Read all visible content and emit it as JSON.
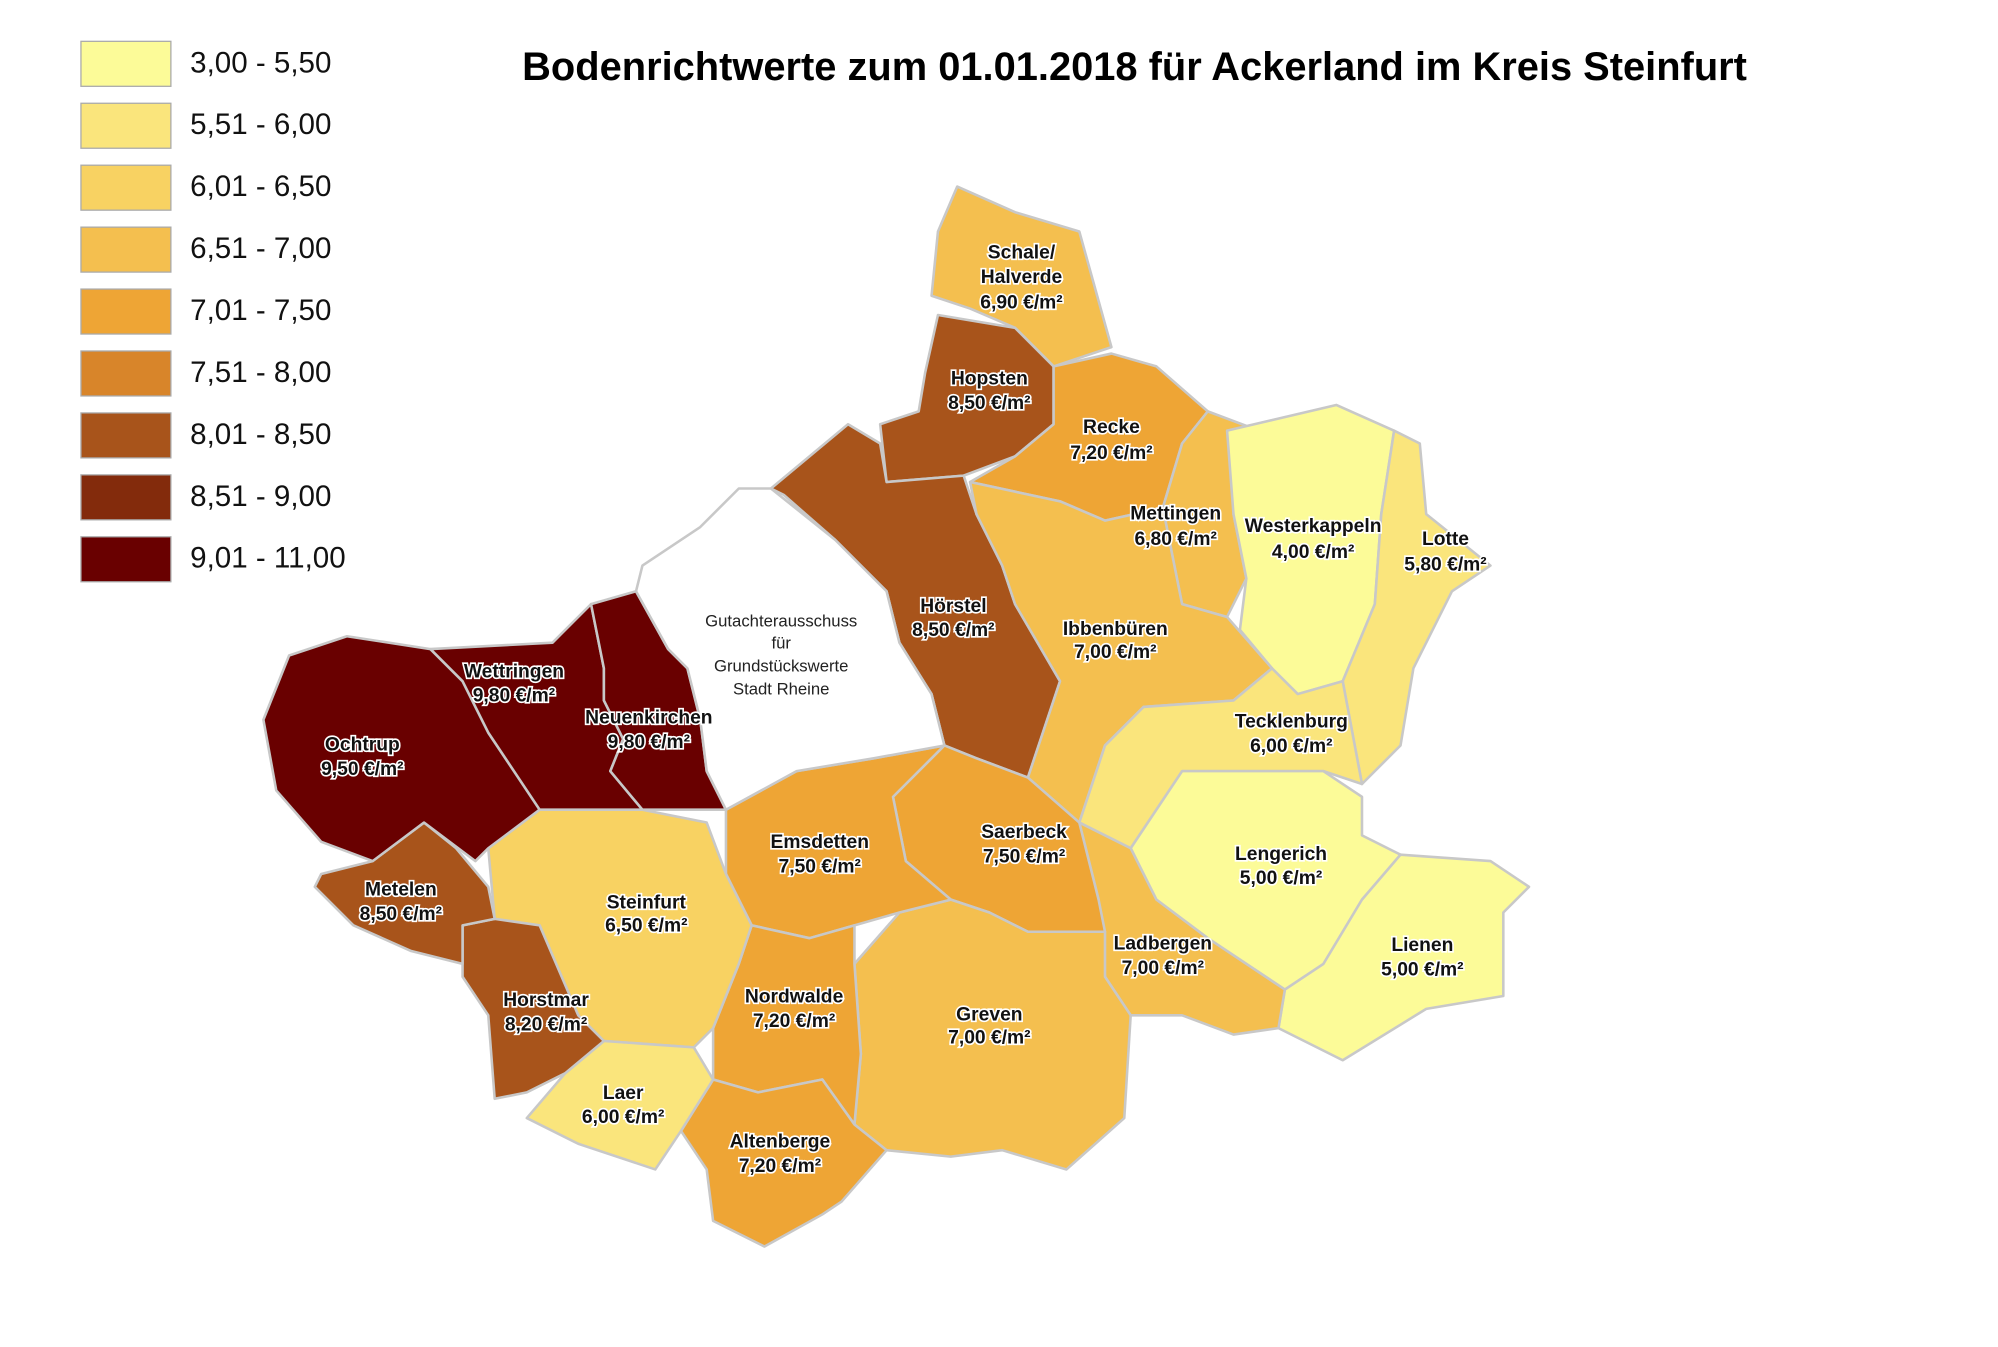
{
  "title": "Bodenrichtwerte zum 01.01.2018 für Ackerland im Kreis Steinfurt",
  "legend": [
    {
      "label": "3,00 - 5,50",
      "color": "#fcfb98"
    },
    {
      "label": "5,51 - 6,00",
      "color": "#fae57c"
    },
    {
      "label": "6,01 - 6,50",
      "color": "#f8d262"
    },
    {
      "label": "6,51 - 7,00",
      "color": "#f4bf4f"
    },
    {
      "label": "7,01 - 7,50",
      "color": "#eea535"
    },
    {
      "label": "7,51 - 8,00",
      "color": "#d8852a"
    },
    {
      "label": "8,01 - 8,50",
      "color": "#a8541b"
    },
    {
      "label": "8,51 - 9,00",
      "color": "#832b0c"
    },
    {
      "label": "9,01 - 11,00",
      "color": "#690000"
    }
  ],
  "regions": [
    {
      "name": [
        "Schale/",
        "Halverde"
      ],
      "value": "6,90 €/m²",
      "color": "#f4bf4f"
    },
    {
      "name": "Hopsten",
      "value": "8,50 €/m²",
      "color": "#a8541b"
    },
    {
      "name": "Recke",
      "value": "7,20 €/m²",
      "color": "#eea535"
    },
    {
      "name": "Mettingen",
      "value": "6,80 €/m²",
      "color": "#f4bf4f"
    },
    {
      "name": "Westerkappeln",
      "value": "4,00 €/m²",
      "color": "#fcfb98"
    },
    {
      "name": "Lotte",
      "value": "5,80 €/m²",
      "color": "#fae57c"
    },
    {
      "name": "Hörstel",
      "value": "8,50 €/m²",
      "color": "#a8541b"
    },
    {
      "name": "Ibbenbüren",
      "value": "7,00 €/m²",
      "color": "#f4bf4f"
    },
    {
      "name": "Tecklenburg",
      "value": "6,00 €/m²",
      "color": "#fae57c"
    },
    {
      "name": "Lengerich",
      "value": "5,00 €/m²",
      "color": "#fcfb98"
    },
    {
      "name": "Lienen",
      "value": "5,00 €/m²",
      "color": "#fcfb98"
    },
    {
      "name": "Ladbergen",
      "value": "7,00 €/m²",
      "color": "#f4bf4f"
    },
    {
      "name": "Saerbeck",
      "value": "7,50 €/m²",
      "color": "#eea535"
    },
    {
      "name": "Greven",
      "value": "7,00 €/m²",
      "color": "#f4bf4f"
    },
    {
      "name": "Emsdetten",
      "value": "7,50 €/m²",
      "color": "#eea535"
    },
    {
      "name": "Nordwalde",
      "value": "7,20 €/m²",
      "color": "#eea535"
    },
    {
      "name": "Altenberge",
      "value": "7,20 €/m²",
      "color": "#eea535"
    },
    {
      "name": "Steinfurt",
      "value": "6,50 €/m²",
      "color": "#f8d262"
    },
    {
      "name": "Laer",
      "value": "6,00 €/m²",
      "color": "#fae57c"
    },
    {
      "name": "Horstmar",
      "value": "8,20 €/m²",
      "color": "#a8541b"
    },
    {
      "name": "Metelen",
      "value": "8,50 €/m²",
      "color": "#a8541b"
    },
    {
      "name": "Ochtrup",
      "value": "9,50 €/m²",
      "color": "#690000"
    },
    {
      "name": "Wettringen",
      "value": "9,80 €/m²",
      "color": "#690000"
    },
    {
      "name": "Neuenkirchen",
      "value": "9,80 €/m²",
      "color": "#690000"
    }
  ],
  "rheine": {
    "lines": [
      "Gutachterausschuss",
      "für",
      "Grundstückswerte",
      "Stadt Rheine"
    ],
    "color": "#ffffff"
  }
}
